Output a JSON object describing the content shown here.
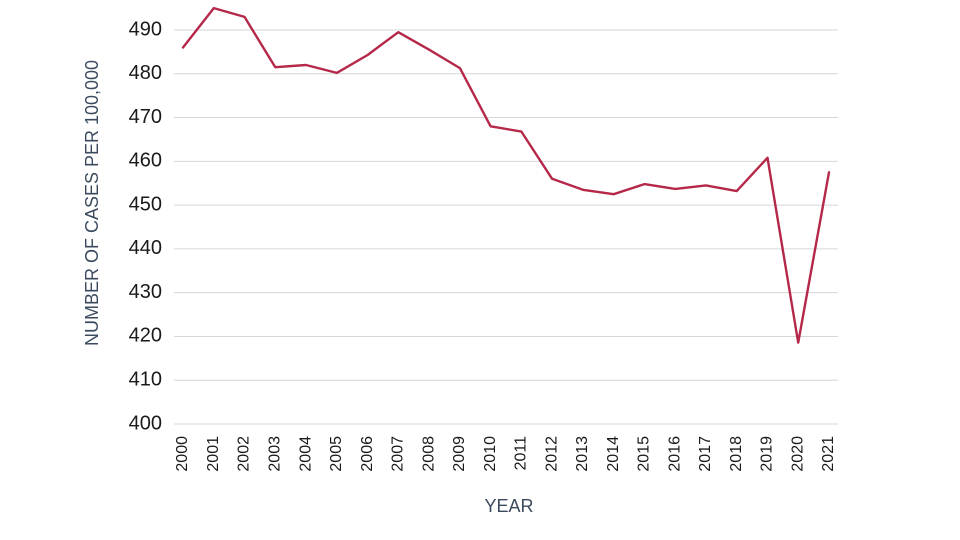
{
  "chart_data": {
    "type": "line",
    "title": "",
    "xlabel": "YEAR",
    "ylabel": "NUMBER OF CASES PER 100,000",
    "ylim": [
      400,
      490
    ],
    "yticks": [
      400,
      410,
      420,
      430,
      440,
      450,
      460,
      470,
      480,
      490
    ],
    "grid": true,
    "x": [
      "2000",
      "2001",
      "2002",
      "2003",
      "2004",
      "2005",
      "2006",
      "2007",
      "2008",
      "2009",
      "2010",
      "2011",
      "2012",
      "2013",
      "2014",
      "2015",
      "2016",
      "2017",
      "2018",
      "2019",
      "2020",
      "2021"
    ],
    "series": [
      {
        "color": "#b5284a",
        "values": [
          486.0,
          495.0,
          493.0,
          481.5,
          482.0,
          480.2,
          484.3,
          489.5,
          485.5,
          481.3,
          468.0,
          466.8,
          456.0,
          453.5,
          452.5,
          454.8,
          453.7,
          454.5,
          453.2,
          460.8,
          418.6,
          457.5
        ]
      }
    ]
  }
}
